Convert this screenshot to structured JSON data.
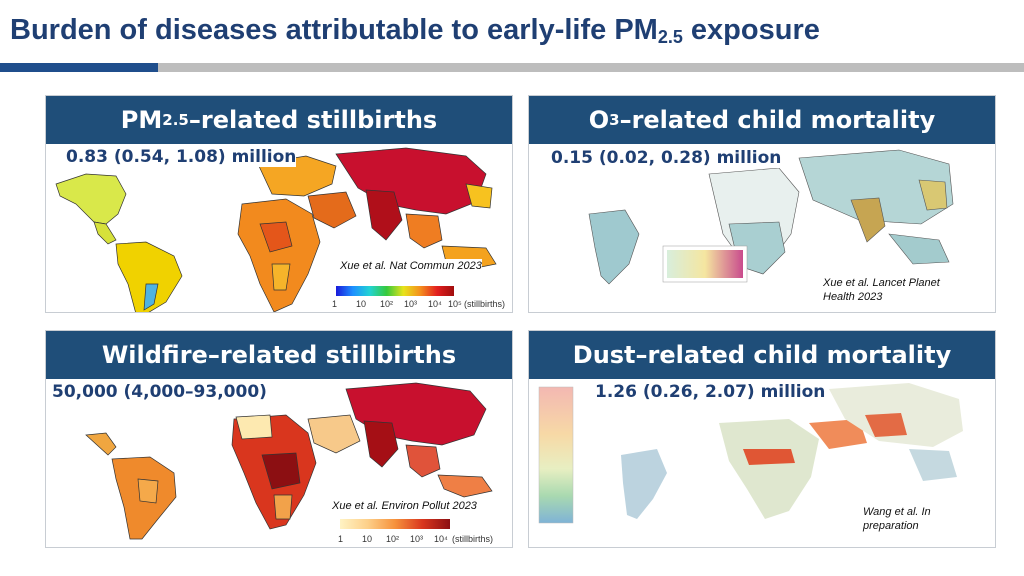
{
  "slide": {
    "title_pre": "Burden of diseases attributable to early-life PM",
    "title_sub": "2.5",
    "title_post": " exposure"
  },
  "panels": {
    "pm25": {
      "title_pre": "PM",
      "title_sub": "2.5",
      "title_post": "–related stillbirths",
      "estimate": "0.83 (0.54, 1.08) million",
      "citation": "Xue et al. Nat Commun 2023",
      "scale_ticks": [
        "1",
        "10",
        "10²",
        "10³",
        "10⁴",
        "10⁵"
      ],
      "scale_unit": "(stillbirths)"
    },
    "o3": {
      "title_pre": "O",
      "title_sub": "3",
      "title_post": "–related child mortality",
      "estimate": "0.15 (0.02, 0.28) million",
      "citation_line1": "Xue et al. Lancet Planet",
      "citation_line2": "Health 2023"
    },
    "wildfire": {
      "title": "Wildfire–related stillbirths",
      "estimate": "50,000 (4,000–93,000)",
      "citation": "Xue et al. Environ Pollut 2023",
      "scale_ticks": [
        "1",
        "10",
        "10²",
        "10³",
        "10⁴"
      ],
      "scale_unit": "(stillbirths)"
    },
    "dust": {
      "title": "Dust–related child mortality",
      "estimate": "1.26 (0.26, 2.07) million",
      "citation_line1": "Wang et al. In",
      "citation_line2": "preparation"
    }
  },
  "colors": {
    "title": "#1f3f73",
    "header_bg": "#1f4e79",
    "accent_blue": "#1f4e8c",
    "rule_grey": "#bdbdbd"
  }
}
